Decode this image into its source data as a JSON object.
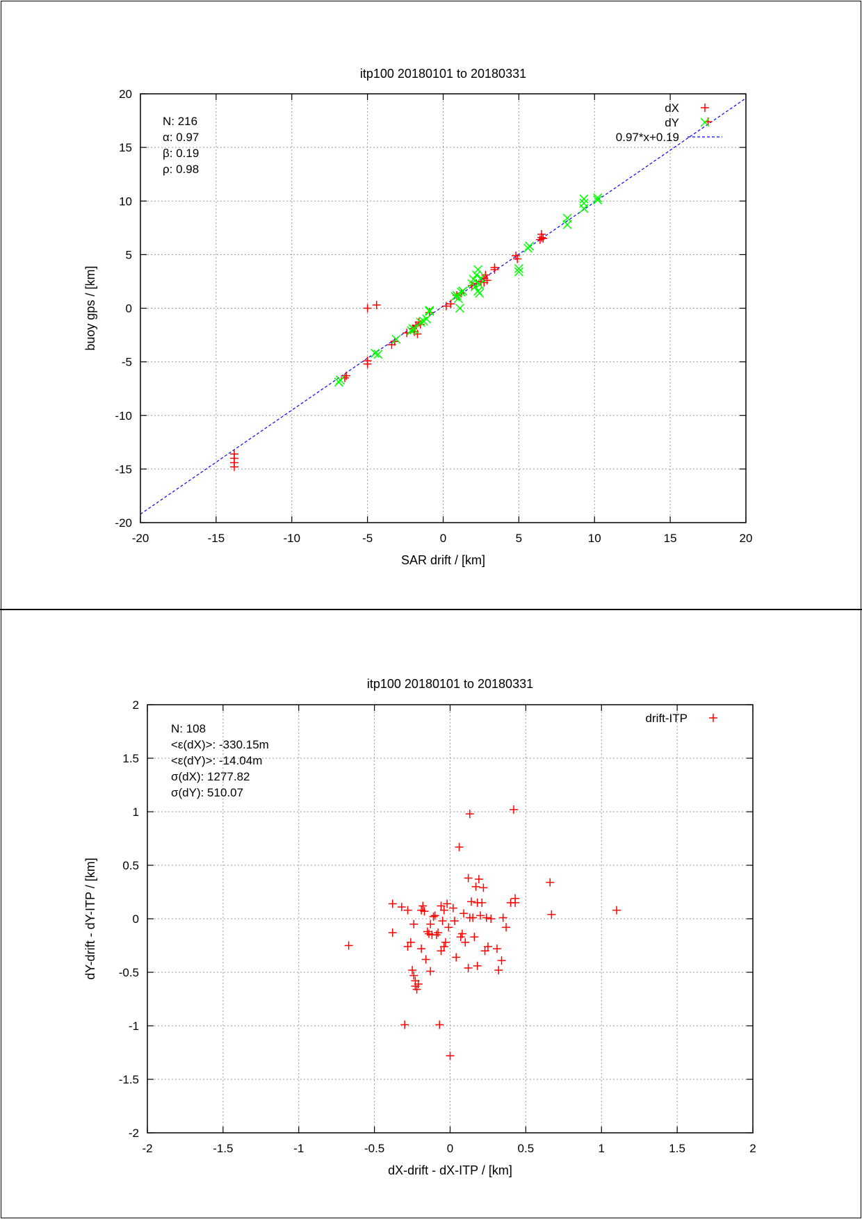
{
  "chart_data": [
    {
      "type": "scatter",
      "title": "itp100 20180101 to 20180331",
      "xlabel": "SAR drift / [km]",
      "ylabel": "buoy gps / [km]",
      "xlim": [
        -20,
        20
      ],
      "ylim": [
        -20,
        20
      ],
      "xticks": [
        -20,
        -15,
        -10,
        -5,
        0,
        5,
        10,
        15,
        20
      ],
      "yticks": [
        -20,
        -15,
        -10,
        -5,
        0,
        5,
        10,
        15,
        20
      ],
      "tick_labels_x": [
        "-20",
        "-15",
        "-10",
        "-5",
        "0",
        "5",
        "10",
        "15",
        "20"
      ],
      "tick_labels_y": [
        "-20",
        "-15",
        "-10",
        "-5",
        "0",
        "5",
        "10",
        "15",
        "20"
      ],
      "grid": true,
      "legend_position": "top-right",
      "stats": [
        "N: 216",
        "α: 0.97",
        "β: 0.19",
        "ρ: 0.98"
      ],
      "series": [
        {
          "name": "dX",
          "marker": "plus",
          "color": "#ff0000",
          "points": [
            [
              -13.8,
              -13.6
            ],
            [
              -13.8,
              -14.0
            ],
            [
              -13.8,
              -14.4
            ],
            [
              -13.8,
              -14.8
            ],
            [
              -6.4,
              -6.3
            ],
            [
              -6.5,
              -6.5
            ],
            [
              -5.0,
              -4.9
            ],
            [
              -5.0,
              -5.2
            ],
            [
              -5.0,
              0.0
            ],
            [
              -4.4,
              0.3
            ],
            [
              -3.4,
              -3.4
            ],
            [
              -3.2,
              -3.1
            ],
            [
              -2.4,
              -2.3
            ],
            [
              -2.0,
              -1.9
            ],
            [
              -1.9,
              -2.2
            ],
            [
              -1.8,
              -1.6
            ],
            [
              -1.7,
              -2.4
            ],
            [
              -1.6,
              -1.3
            ],
            [
              -1.5,
              -1.5
            ],
            [
              -0.9,
              -0.4
            ],
            [
              0.2,
              0.2
            ],
            [
              0.5,
              0.4
            ],
            [
              0.9,
              1.2
            ],
            [
              1.2,
              1.4
            ],
            [
              1.9,
              2.1
            ],
            [
              2.2,
              2.3
            ],
            [
              2.5,
              2.5
            ],
            [
              2.7,
              2.8
            ],
            [
              2.7,
              2.4
            ],
            [
              2.8,
              3.1
            ],
            [
              2.9,
              2.6
            ],
            [
              3.4,
              3.6
            ],
            [
              3.4,
              3.8
            ],
            [
              4.8,
              4.9
            ],
            [
              4.9,
              4.6
            ],
            [
              6.4,
              6.4
            ],
            [
              6.5,
              6.6
            ],
            [
              6.5,
              6.9
            ],
            [
              6.6,
              6.5
            ],
            [
              17.5,
              17.4
            ]
          ]
        },
        {
          "name": "dY",
          "marker": "cross",
          "color": "#00ff00",
          "points": [
            [
              -6.9,
              -6.9
            ],
            [
              -6.8,
              -6.7
            ],
            [
              -4.5,
              -4.2
            ],
            [
              -4.3,
              -4.3
            ],
            [
              -3.1,
              -2.9
            ],
            [
              -2.1,
              -2.1
            ],
            [
              -2.0,
              -1.9
            ],
            [
              -1.9,
              -2.0
            ],
            [
              -1.5,
              -1.3
            ],
            [
              -1.3,
              -1.2
            ],
            [
              -1.1,
              -1.0
            ],
            [
              -0.9,
              -0.3
            ],
            [
              -0.9,
              -0.2
            ],
            [
              0.8,
              1.1
            ],
            [
              0.9,
              1.2
            ],
            [
              1.0,
              0.9
            ],
            [
              1.1,
              0.0
            ],
            [
              1.2,
              1.5
            ],
            [
              1.3,
              1.6
            ],
            [
              1.9,
              2.3
            ],
            [
              2.0,
              2.7
            ],
            [
              2.1,
              2.0
            ],
            [
              2.2,
              3.1
            ],
            [
              2.3,
              3.6
            ],
            [
              2.3,
              1.6
            ],
            [
              2.4,
              1.4
            ],
            [
              2.4,
              2.2
            ],
            [
              2.5,
              2.8
            ],
            [
              5.0,
              3.4
            ],
            [
              5.0,
              3.7
            ],
            [
              5.6,
              5.6
            ],
            [
              5.7,
              5.8
            ],
            [
              8.2,
              7.8
            ],
            [
              8.2,
              8.4
            ],
            [
              9.3,
              9.3
            ],
            [
              9.3,
              9.8
            ],
            [
              9.3,
              10.2
            ],
            [
              10.2,
              10.1
            ],
            [
              10.2,
              10.3
            ]
          ]
        },
        {
          "name": "0.97*x+0.19",
          "type": "line",
          "style": "dashed",
          "color": "#0000ff",
          "slope": 0.97,
          "intercept": 0.19
        }
      ]
    },
    {
      "type": "scatter",
      "title": "itp100 20180101 to 20180331",
      "xlabel": "dX-drift - dX-ITP / [km]",
      "ylabel": "dY-drift - dY-ITP / [km]",
      "xlim": [
        -2,
        2
      ],
      "ylim": [
        -2,
        2
      ],
      "xticks": [
        -2,
        -1.5,
        -1,
        -0.5,
        0,
        0.5,
        1,
        1.5,
        2
      ],
      "yticks": [
        -2,
        -1.5,
        -1,
        -0.5,
        0,
        0.5,
        1,
        1.5,
        2
      ],
      "tick_labels_x": [
        "-2",
        "-1.5",
        "-1",
        "-0.5",
        "0",
        "0.5",
        "1",
        "1.5",
        "2"
      ],
      "tick_labels_y": [
        "-2",
        "-1.5",
        "-1",
        "-0.5",
        "0",
        "0.5",
        "1",
        "1.5",
        "2"
      ],
      "grid": true,
      "legend_position": "top-right",
      "stats": [
        "N: 108",
        "<ε(dX)>:  -330.15m",
        "<ε(dY)>: -14.04m",
        "σ(dX):  1277.82",
        "σ(dY):  510.07"
      ],
      "series": [
        {
          "name": "drift-ITP",
          "marker": "plus",
          "color": "#ff0000",
          "points": [
            [
              -0.67,
              -0.25
            ],
            [
              -0.38,
              0.14
            ],
            [
              -0.38,
              -0.13
            ],
            [
              -0.32,
              0.11
            ],
            [
              -0.3,
              -0.99
            ],
            [
              -0.28,
              0.08
            ],
            [
              -0.28,
              -0.26
            ],
            [
              -0.26,
              -0.22
            ],
            [
              -0.25,
              -0.48
            ],
            [
              -0.24,
              -0.53
            ],
            [
              -0.24,
              -0.05
            ],
            [
              -0.23,
              -0.58
            ],
            [
              -0.23,
              -0.63
            ],
            [
              -0.22,
              -0.66
            ],
            [
              -0.21,
              -0.61
            ],
            [
              -0.19,
              0.08
            ],
            [
              -0.19,
              -0.28
            ],
            [
              -0.18,
              0.12
            ],
            [
              -0.17,
              0.07
            ],
            [
              -0.16,
              -0.38
            ],
            [
              -0.15,
              -0.12
            ],
            [
              -0.14,
              -0.14
            ],
            [
              -0.13,
              -0.05
            ],
            [
              -0.13,
              -0.49
            ],
            [
              -0.12,
              -0.15
            ],
            [
              -0.11,
              0.02
            ],
            [
              -0.1,
              0.03
            ],
            [
              -0.09,
              -0.15
            ],
            [
              -0.08,
              -0.13
            ],
            [
              -0.07,
              -0.99
            ],
            [
              -0.06,
              0.12
            ],
            [
              -0.06,
              -0.3
            ],
            [
              -0.05,
              -0.02
            ],
            [
              -0.04,
              0.08
            ],
            [
              -0.04,
              -0.26
            ],
            [
              -0.03,
              -0.22
            ],
            [
              -0.02,
              0.14
            ],
            [
              -0.01,
              -0.08
            ],
            [
              0.0,
              -1.28
            ],
            [
              0.02,
              0.1
            ],
            [
              0.03,
              -0.02
            ],
            [
              0.04,
              -0.36
            ],
            [
              0.06,
              0.67
            ],
            [
              0.07,
              -0.17
            ],
            [
              0.08,
              -0.14
            ],
            [
              0.09,
              0.05
            ],
            [
              0.1,
              -0.22
            ],
            [
              0.12,
              0.38
            ],
            [
              0.12,
              -0.46
            ],
            [
              0.13,
              0.98
            ],
            [
              0.13,
              0.01
            ],
            [
              0.14,
              0.16
            ],
            [
              0.15,
              0.01
            ],
            [
              0.16,
              -0.17
            ],
            [
              0.17,
              0.3
            ],
            [
              0.18,
              -0.44
            ],
            [
              0.18,
              0.15
            ],
            [
              0.19,
              0.37
            ],
            [
              0.2,
              0.03
            ],
            [
              0.21,
              0.15
            ],
            [
              0.22,
              0.29
            ],
            [
              0.23,
              -0.3
            ],
            [
              0.24,
              0.01
            ],
            [
              0.25,
              -0.26
            ],
            [
              0.27,
              0.0
            ],
            [
              0.31,
              -0.28
            ],
            [
              0.32,
              -0.48
            ],
            [
              0.34,
              -0.39
            ],
            [
              0.35,
              0.01
            ],
            [
              0.37,
              -0.08
            ],
            [
              0.4,
              0.15
            ],
            [
              0.42,
              1.02
            ],
            [
              0.43,
              0.19
            ],
            [
              0.43,
              0.15
            ],
            [
              0.66,
              0.34
            ],
            [
              0.67,
              0.04
            ],
            [
              1.1,
              0.08
            ]
          ]
        }
      ]
    }
  ],
  "colors": {
    "dX": "#ff0000",
    "dY": "#00ff00",
    "fit": "#0000ff",
    "grid": "#999999"
  }
}
